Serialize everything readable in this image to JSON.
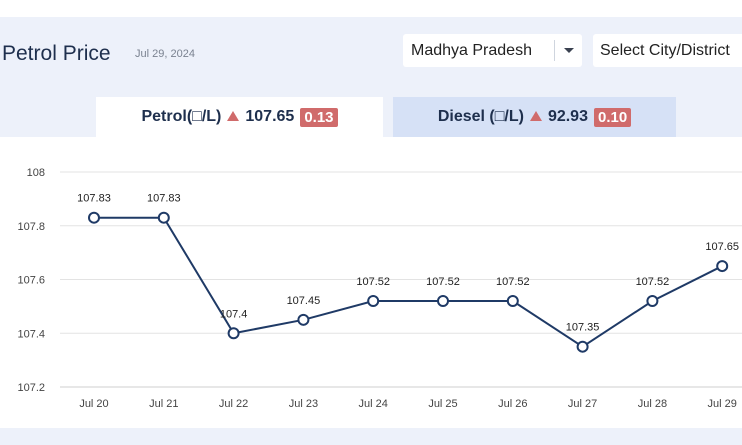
{
  "header": {
    "title": "Petrol Price",
    "date": "Jul 29, 2024"
  },
  "filters": {
    "state": "Madhya Pradesh",
    "city_placeholder": "Select City/District"
  },
  "tabs": [
    {
      "label": "Petrol(□/L)",
      "price": "107.65",
      "change": "0.13",
      "trend": "up"
    },
    {
      "label": "Diesel (□/L)",
      "price": "92.93",
      "change": "0.10",
      "trend": "up"
    }
  ],
  "colors": {
    "line": "#1f3a66",
    "up_badge": "#d06b6b",
    "grid": "#e3e3e3"
  },
  "chart_data": {
    "type": "line",
    "categories": [
      "Jul 20",
      "Jul 21",
      "Jul 22",
      "Jul 23",
      "Jul 24",
      "Jul 25",
      "Jul 26",
      "Jul 27",
      "Jul 28",
      "Jul 29"
    ],
    "series": [
      {
        "values": [
          107.83,
          107.83,
          107.4,
          107.45,
          107.52,
          107.52,
          107.52,
          107.35,
          107.52,
          107.65
        ]
      }
    ],
    "data_labels": [
      "107.83",
      "107.83",
      "107.4",
      "107.45",
      "107.52",
      "107.52",
      "107.52",
      "107.35",
      "107.52",
      "107.65"
    ],
    "y_ticks": [
      "107.2",
      "107.4",
      "107.6",
      "107.8",
      "108"
    ],
    "ylim": [
      107.2,
      108
    ],
    "grid": true,
    "title": "",
    "xlabel": "",
    "ylabel": ""
  }
}
